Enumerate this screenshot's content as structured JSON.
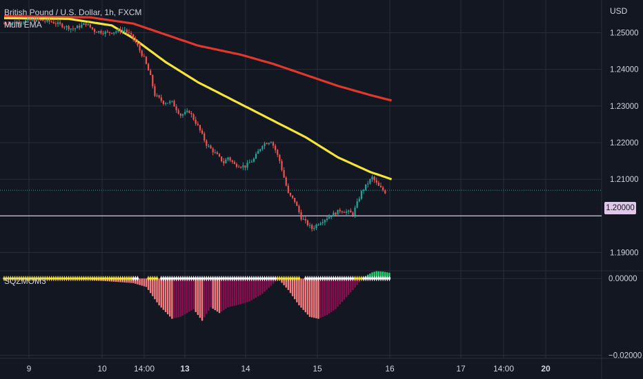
{
  "header": {
    "symbol_label": "British Pound / U.S. Dollar, 1h, FXCM",
    "indicator_label": "Multi EMA",
    "oscillator_label": "SQZMOM3",
    "currency": "USD"
  },
  "price_marker": "1.20000",
  "colors": {
    "background": "#131722",
    "grid": "#2a2e39",
    "up_candle": "#26a69a",
    "down_candle": "#ef5350",
    "ema_fast": "#f5e43a",
    "ema_slow": "#e0382d",
    "hline": "#e1c7e8",
    "last_price_line": "#26a69a",
    "squeeze_on": "#f5e43a",
    "squeeze_off": "#ffffff",
    "hist_light_red": "#f77c80",
    "hist_dark_red": "#880e4f",
    "hist_green": "#26d36e"
  },
  "chart_data": [
    {
      "type": "candlestick",
      "title": "British Pound / U.S. Dollar, 1h, FXCM",
      "ylabel": "USD",
      "ylim": [
        1.185,
        1.258
      ],
      "y_ticks": [
        1.25,
        1.24,
        1.23,
        1.22,
        1.21,
        1.2,
        1.19
      ],
      "y_tick_labels": [
        "1.25000",
        "1.24000",
        "1.23000",
        "1.22000",
        "1.21000",
        "1.20000",
        "1.19000"
      ],
      "x_ticks": [
        "9",
        "10",
        "14:00",
        "13",
        "14",
        "15",
        "16",
        "17",
        "14:00",
        "20"
      ],
      "bold_x_ticks": [
        "13",
        "20"
      ],
      "bars_per_day": 24,
      "close_path_anchors": [
        [
          0,
          1.2525
        ],
        [
          14,
          1.2535
        ],
        [
          22,
          1.253
        ],
        [
          26,
          1.2522
        ],
        [
          32,
          1.251
        ],
        [
          38,
          1.2525
        ],
        [
          42,
          1.2505
        ],
        [
          48,
          1.25
        ],
        [
          56,
          1.2508
        ],
        [
          60,
          1.2485
        ],
        [
          65,
          1.243
        ],
        [
          68,
          1.238
        ],
        [
          70,
          1.233
        ],
        [
          74,
          1.231
        ],
        [
          78,
          1.231
        ],
        [
          82,
          1.2275
        ],
        [
          86,
          1.2285
        ],
        [
          90,
          1.2245
        ],
        [
          94,
          1.2195
        ],
        [
          99,
          1.2165
        ],
        [
          102,
          1.2145
        ],
        [
          104,
          1.216
        ],
        [
          107,
          1.214
        ],
        [
          112,
          1.2135
        ],
        [
          116,
          1.2155
        ],
        [
          120,
          1.2195
        ],
        [
          124,
          1.2205
        ],
        [
          126,
          1.218
        ],
        [
          128,
          1.215
        ],
        [
          130,
          1.2105
        ],
        [
          132,
          1.206
        ],
        [
          135,
          1.204
        ],
        [
          138,
          1.1995
        ],
        [
          143,
          1.1965
        ],
        [
          146,
          1.198
        ],
        [
          150,
          1.1995
        ],
        [
          156,
          1.2015
        ],
        [
          160,
          1.201
        ],
        [
          162,
          1.2005
        ],
        [
          164,
          1.2035
        ],
        [
          166,
          1.2065
        ],
        [
          169,
          1.209
        ],
        [
          171,
          1.2105
        ],
        [
          174,
          1.208
        ],
        [
          177,
          1.2065
        ]
      ],
      "last_price": 1.207,
      "horizontal_line": 1.2,
      "ema_fast": {
        "name": "EMA",
        "points": [
          [
            0,
            1.254
          ],
          [
            30,
            1.2538
          ],
          [
            50,
            1.252
          ],
          [
            60,
            1.2485
          ],
          [
            75,
            1.242
          ],
          [
            90,
            1.2365
          ],
          [
            110,
            1.2305
          ],
          [
            125,
            1.226
          ],
          [
            140,
            1.2215
          ],
          [
            155,
            1.216
          ],
          [
            170,
            1.212
          ],
          [
            180,
            1.21
          ]
        ]
      },
      "ema_slow": {
        "name": "EMA",
        "points": [
          [
            0,
            1.2545
          ],
          [
            40,
            1.2542
          ],
          [
            60,
            1.2525
          ],
          [
            75,
            1.2495
          ],
          [
            90,
            1.2465
          ],
          [
            110,
            1.244
          ],
          [
            125,
            1.2415
          ],
          [
            140,
            1.2385
          ],
          [
            155,
            1.2355
          ],
          [
            170,
            1.233
          ],
          [
            180,
            1.2315
          ]
        ]
      }
    },
    {
      "type": "histogram",
      "title": "SQZMOM3",
      "ylim": [
        -0.0208,
        0.002
      ],
      "y_ticks": [
        0.0,
        -0.02
      ],
      "y_tick_labels": [
        "0.00000",
        "−0.02000"
      ],
      "zero_cross_segments": [
        {
          "from": 0,
          "to": 59,
          "state": "squeeze_on"
        },
        {
          "from": 60,
          "to": 62,
          "state": "squeeze_off"
        },
        {
          "from": 67,
          "to": 71,
          "state": "squeeze_on"
        },
        {
          "from": 73,
          "to": 126,
          "state": "squeeze_off"
        },
        {
          "from": 127,
          "to": 137,
          "state": "squeeze_on"
        },
        {
          "from": 140,
          "to": 162,
          "state": "squeeze_off"
        },
        {
          "from": 163,
          "to": 166,
          "state": "squeeze_on"
        },
        {
          "from": 167,
          "to": 179,
          "state": "squeeze_off"
        }
      ],
      "momentum_anchors": [
        [
          0,
          -0.0004
        ],
        [
          40,
          -0.0004
        ],
        [
          60,
          -0.0012
        ],
        [
          66,
          -0.0022
        ],
        [
          72,
          -0.007
        ],
        [
          78,
          -0.0105
        ],
        [
          82,
          -0.01
        ],
        [
          88,
          -0.008
        ],
        [
          92,
          -0.011
        ],
        [
          96,
          -0.0075
        ],
        [
          100,
          -0.009
        ],
        [
          104,
          -0.0075
        ],
        [
          108,
          -0.007
        ],
        [
          114,
          -0.006
        ],
        [
          120,
          -0.004
        ],
        [
          126,
          -0.0008
        ],
        [
          128,
          -0.0005
        ],
        [
          132,
          -0.003
        ],
        [
          137,
          -0.007
        ],
        [
          142,
          -0.01
        ],
        [
          146,
          -0.0105
        ],
        [
          150,
          -0.0095
        ],
        [
          154,
          -0.008
        ],
        [
          158,
          -0.0055
        ],
        [
          162,
          -0.003
        ],
        [
          165,
          -0.001
        ],
        [
          167,
          0.0003
        ],
        [
          169,
          0.001
        ],
        [
          171,
          0.0016
        ],
        [
          173,
          0.0019
        ],
        [
          176,
          0.0018
        ],
        [
          179,
          0.0015
        ]
      ]
    }
  ]
}
